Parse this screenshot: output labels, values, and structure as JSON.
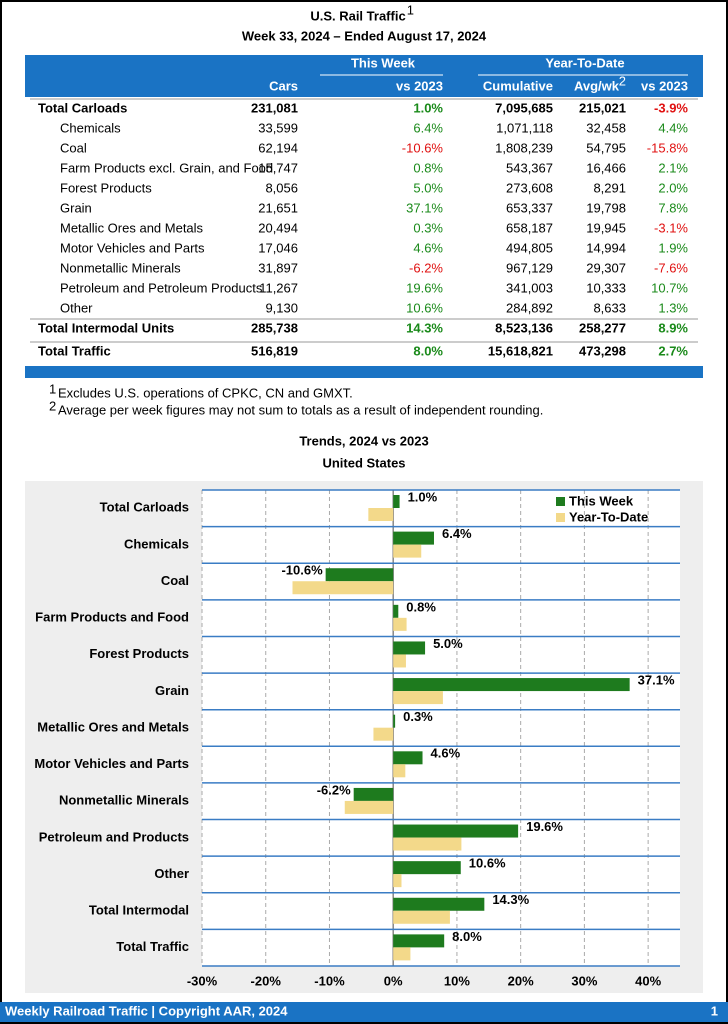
{
  "header": {
    "title": "U.S. Rail Traffic",
    "title_note": "1",
    "subtitle": "Week 33, 2024 – Ended August 17, 2024"
  },
  "table": {
    "groups": [
      "This Week",
      "Year-To-Date"
    ],
    "columns": [
      "Cars",
      "vs 2023",
      "Cumulative",
      {
        "text": "Avg/wk",
        "note": "2"
      },
      "vs 2023"
    ],
    "sections": [
      {
        "total": [
          "Total Carloads",
          "231,081",
          "1.0%",
          "7,095,685",
          "215,021",
          "-3.9%"
        ],
        "items": [
          [
            "Chemicals",
            "33,599",
            "6.4%",
            "1,071,118",
            "32,458",
            "4.4%"
          ],
          [
            "Coal",
            "62,194",
            "-10.6%",
            "1,808,239",
            "54,795",
            "-15.8%"
          ],
          [
            "Farm Products excl. Grain, and Food",
            "15,747",
            "0.8%",
            "543,367",
            "16,466",
            "2.1%"
          ],
          [
            "Forest Products",
            "8,056",
            "5.0%",
            "273,608",
            "8,291",
            "2.0%"
          ],
          [
            "Grain",
            "21,651",
            "37.1%",
            "653,337",
            "19,798",
            "7.8%"
          ],
          [
            "Metallic Ores and Metals",
            "20,494",
            "0.3%",
            "658,187",
            "19,945",
            "-3.1%"
          ],
          [
            "Motor Vehicles and Parts",
            "17,046",
            "4.6%",
            "494,805",
            "14,994",
            "1.9%"
          ],
          [
            "Nonmetallic Minerals",
            "31,897",
            "-6.2%",
            "967,129",
            "29,307",
            "-7.6%"
          ],
          [
            "Petroleum and Petroleum Products",
            "11,267",
            "19.6%",
            "341,003",
            "10,333",
            "10.7%"
          ],
          [
            "Other",
            "9,130",
            "10.6%",
            "284,892",
            "8,633",
            "1.3%"
          ]
        ]
      },
      {
        "total": [
          "Total Intermodal Units",
          "285,738",
          "14.3%",
          "8,523,136",
          "258,277",
          "8.9%"
        ]
      },
      {
        "total": [
          "Total Traffic",
          "516,819",
          "8.0%",
          "15,618,821",
          "473,298",
          "2.7%"
        ]
      }
    ]
  },
  "footnotes": [
    {
      "mark": "1",
      "text": "Excludes U.S. operations of CPKC, CN and GMXT."
    },
    {
      "mark": "2",
      "text": "Average per week figures may not sum to totals as a result of independent rounding."
    }
  ],
  "chart_data": {
    "type": "bar",
    "orientation": "horizontal",
    "title": "Trends, 2024 vs 2023",
    "subtitle": "United States",
    "categories": [
      "Total Carloads",
      "Chemicals",
      "Coal",
      "Farm Products and Food",
      "Forest Products",
      "Grain",
      "Metallic Ores and Metals",
      "Motor Vehicles and Parts",
      "Nonmetallic Minerals",
      "Petroleum and Products",
      "Other",
      "Total Intermodal",
      "Total Traffic"
    ],
    "series": [
      {
        "name": "This Week",
        "color": "#1e7b1e",
        "values": [
          1.0,
          6.4,
          -10.6,
          0.8,
          5.0,
          37.1,
          0.3,
          4.6,
          -6.2,
          19.6,
          10.6,
          14.3,
          8.0
        ],
        "value_labels": [
          "1.0%",
          "6.4%",
          "-10.6%",
          "0.8%",
          "5.0%",
          "37.1%",
          "0.3%",
          "4.6%",
          "-6.2%",
          "19.6%",
          "10.6%",
          "14.3%",
          "8.0%"
        ]
      },
      {
        "name": "Year-To-Date",
        "color": "#f3d98a",
        "values": [
          -3.9,
          4.4,
          -15.8,
          2.1,
          2.0,
          7.8,
          -3.1,
          1.9,
          -7.6,
          10.7,
          1.3,
          8.9,
          2.7
        ]
      }
    ],
    "xlim": [
      -30,
      45
    ],
    "xticks": [
      {
        "value": -30,
        "label": "-30%"
      },
      {
        "value": -20,
        "label": "-20%"
      },
      {
        "value": -10,
        "label": "-10%"
      },
      {
        "value": 0,
        "label": "0%"
      },
      {
        "value": 10,
        "label": "10%"
      },
      {
        "value": 20,
        "label": "20%"
      },
      {
        "value": 30,
        "label": "30%"
      },
      {
        "value": 40,
        "label": "40%"
      }
    ],
    "grid": true,
    "legend": "top-right"
  },
  "footer": {
    "text": "Weekly Railroad Traffic | Copyright AAR, 2024",
    "page": "1"
  }
}
